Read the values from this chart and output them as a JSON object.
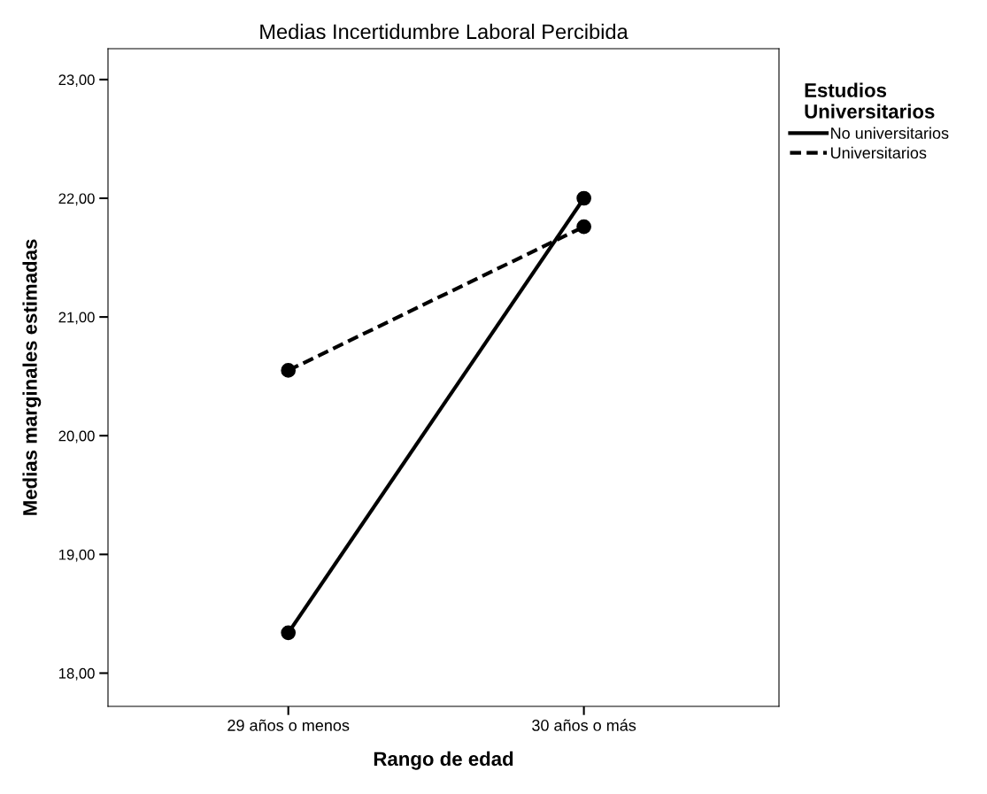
{
  "chart_data": {
    "type": "line",
    "title": "Medias Incertidumbre Laboral Percibida",
    "xlabel": "Rango de edad",
    "ylabel": "Medias marginales estimadas",
    "legend_title": "Estudios\nUniversitarios",
    "categories": [
      "29 años o menos",
      "30 años o más"
    ],
    "series": [
      {
        "name": "No universitarios",
        "color": "#000000",
        "values": [
          18.34,
          22.0
        ],
        "line_style": "solid"
      },
      {
        "name": "Universitarios",
        "color": "#000000",
        "values": [
          20.55,
          21.76
        ],
        "line_style": "dashed"
      }
    ],
    "marker": "circle",
    "ylim": [
      17.72,
      23.26
    ],
    "yticks": [
      {
        "value": 18,
        "label": "18,00"
      },
      {
        "value": 19,
        "label": "19,00"
      },
      {
        "value": 20,
        "label": "20,00"
      },
      {
        "value": 21,
        "label": "21,00"
      },
      {
        "value": 22,
        "label": "22,00"
      },
      {
        "value": 23,
        "label": "23,00"
      }
    ],
    "legend": "top right",
    "grid": false
  }
}
